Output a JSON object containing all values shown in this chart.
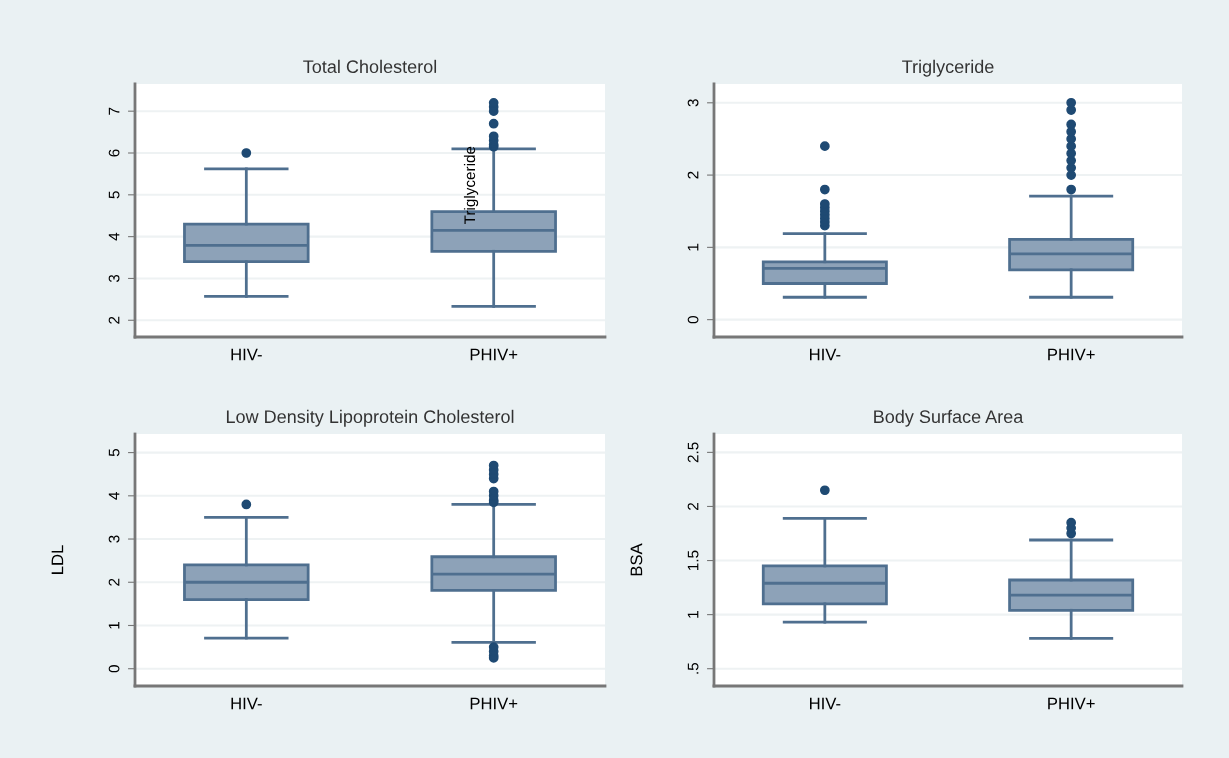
{
  "chart_data": [
    {
      "type": "box",
      "title": "Total Cholesterol",
      "categories": [
        "HIV-",
        "PHIV+"
      ],
      "ylim": [
        1.6,
        7.65
      ],
      "yticks": [
        2,
        3,
        4,
        5,
        6,
        7
      ],
      "grid": "y",
      "annotations": [
        "Triglyceride"
      ],
      "series": [
        {
          "color": "#8da2b8",
          "boxes": [
            {
              "low": 2.57,
              "q1": 3.4,
              "median": 3.79,
              "q3": 4.3,
              "high": 5.62,
              "outliers": [
                6.0
              ]
            },
            {
              "low": 2.33,
              "q1": 3.65,
              "median": 4.15,
              "q3": 4.6,
              "high": 6.1,
              "outliers": [
                6.15,
                6.2,
                6.3,
                6.4,
                6.7,
                7.0,
                7.1,
                7.2
              ]
            }
          ]
        }
      ]
    },
    {
      "type": "box",
      "title": "Triglyceride",
      "categories": [
        "HIV-",
        "PHIV+"
      ],
      "ylim": [
        -0.24,
        3.26
      ],
      "yticks": [
        0,
        1,
        2,
        3
      ],
      "grid": "y",
      "series": [
        {
          "color": "#8da2b8",
          "boxes": [
            {
              "low": 0.31,
              "q1": 0.5,
              "median": 0.71,
              "q3": 0.8,
              "high": 1.19,
              "outliers": [
                1.3,
                1.35,
                1.4,
                1.45,
                1.5,
                1.55,
                1.6,
                1.8,
                2.4
              ]
            },
            {
              "low": 0.31,
              "q1": 0.69,
              "median": 0.91,
              "q3": 1.11,
              "high": 1.71,
              "outliers": [
                1.8,
                2.0,
                2.1,
                2.2,
                2.3,
                2.4,
                2.5,
                2.6,
                2.7,
                2.9,
                3.0
              ]
            }
          ]
        }
      ]
    },
    {
      "type": "box",
      "title": "Low Density Lipoprotein Cholesterol",
      "ylabel": "LDL",
      "categories": [
        "HIV-",
        "PHIV+"
      ],
      "ylim": [
        -0.4,
        5.43
      ],
      "yticks": [
        0,
        1,
        2,
        3,
        4,
        5
      ],
      "grid": "y",
      "series": [
        {
          "color": "#8da2b8",
          "boxes": [
            {
              "low": 0.71,
              "q1": 1.6,
              "median": 2.0,
              "q3": 2.4,
              "high": 3.5,
              "outliers": [
                3.8
              ]
            },
            {
              "low": 0.61,
              "q1": 1.81,
              "median": 2.19,
              "q3": 2.59,
              "high": 3.8,
              "outliers": [
                0.25,
                0.3,
                0.4,
                0.5,
                3.85,
                3.9,
                4.0,
                4.1,
                4.4,
                4.5,
                4.6,
                4.7
              ]
            }
          ]
        }
      ]
    },
    {
      "type": "box",
      "title": "Body Surface Area",
      "ylabel": "BSA",
      "categories": [
        "HIV-",
        "PHIV+"
      ],
      "ylim": [
        0.34,
        2.67
      ],
      "yticks": [
        {
          "value": 0.5,
          "label": ".5"
        },
        1,
        1.5,
        2,
        2.5
      ],
      "grid": "y",
      "series": [
        {
          "color": "#8da2b8",
          "boxes": [
            {
              "low": 0.93,
              "q1": 1.1,
              "median": 1.29,
              "q3": 1.45,
              "high": 1.89,
              "outliers": [
                2.15
              ]
            },
            {
              "low": 0.78,
              "q1": 1.04,
              "median": 1.18,
              "q3": 1.32,
              "high": 1.69,
              "outliers": [
                1.75,
                1.8,
                1.85
              ]
            }
          ]
        }
      ]
    }
  ]
}
